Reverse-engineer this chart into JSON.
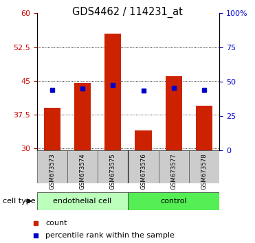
{
  "title": "GDS4462 / 114231_at",
  "samples": [
    "GSM673573",
    "GSM673574",
    "GSM673575",
    "GSM673576",
    "GSM673577",
    "GSM673578"
  ],
  "bar_values": [
    39.0,
    44.5,
    55.5,
    34.0,
    46.0,
    39.5
  ],
  "percentile_values": [
    44.0,
    45.0,
    47.5,
    43.5,
    45.5,
    44.0
  ],
  "bar_bottom": 29.5,
  "ylim_left": [
    29.5,
    60
  ],
  "yticks_left": [
    30,
    37.5,
    45,
    52.5,
    60
  ],
  "ytick_labels_left": [
    "30",
    "37.5",
    "45",
    "52.5",
    "60"
  ],
  "ytick_labels_right": [
    "0",
    "25",
    "50",
    "75",
    "100%"
  ],
  "bar_color": "#cc2200",
  "dot_color": "#0000cc",
  "group1_label": "endothelial cell",
  "group2_label": "control",
  "group1_color": "#bbffbb",
  "group2_color": "#55ee55",
  "cell_type_label": "cell type",
  "legend_count": "count",
  "legend_percentile": "percentile rank within the sample",
  "tick_color_left": "#cc0000",
  "tick_color_right": "#0000cc",
  "xlabel_bg": "#cccccc",
  "n_group1": 3,
  "n_group2": 3
}
